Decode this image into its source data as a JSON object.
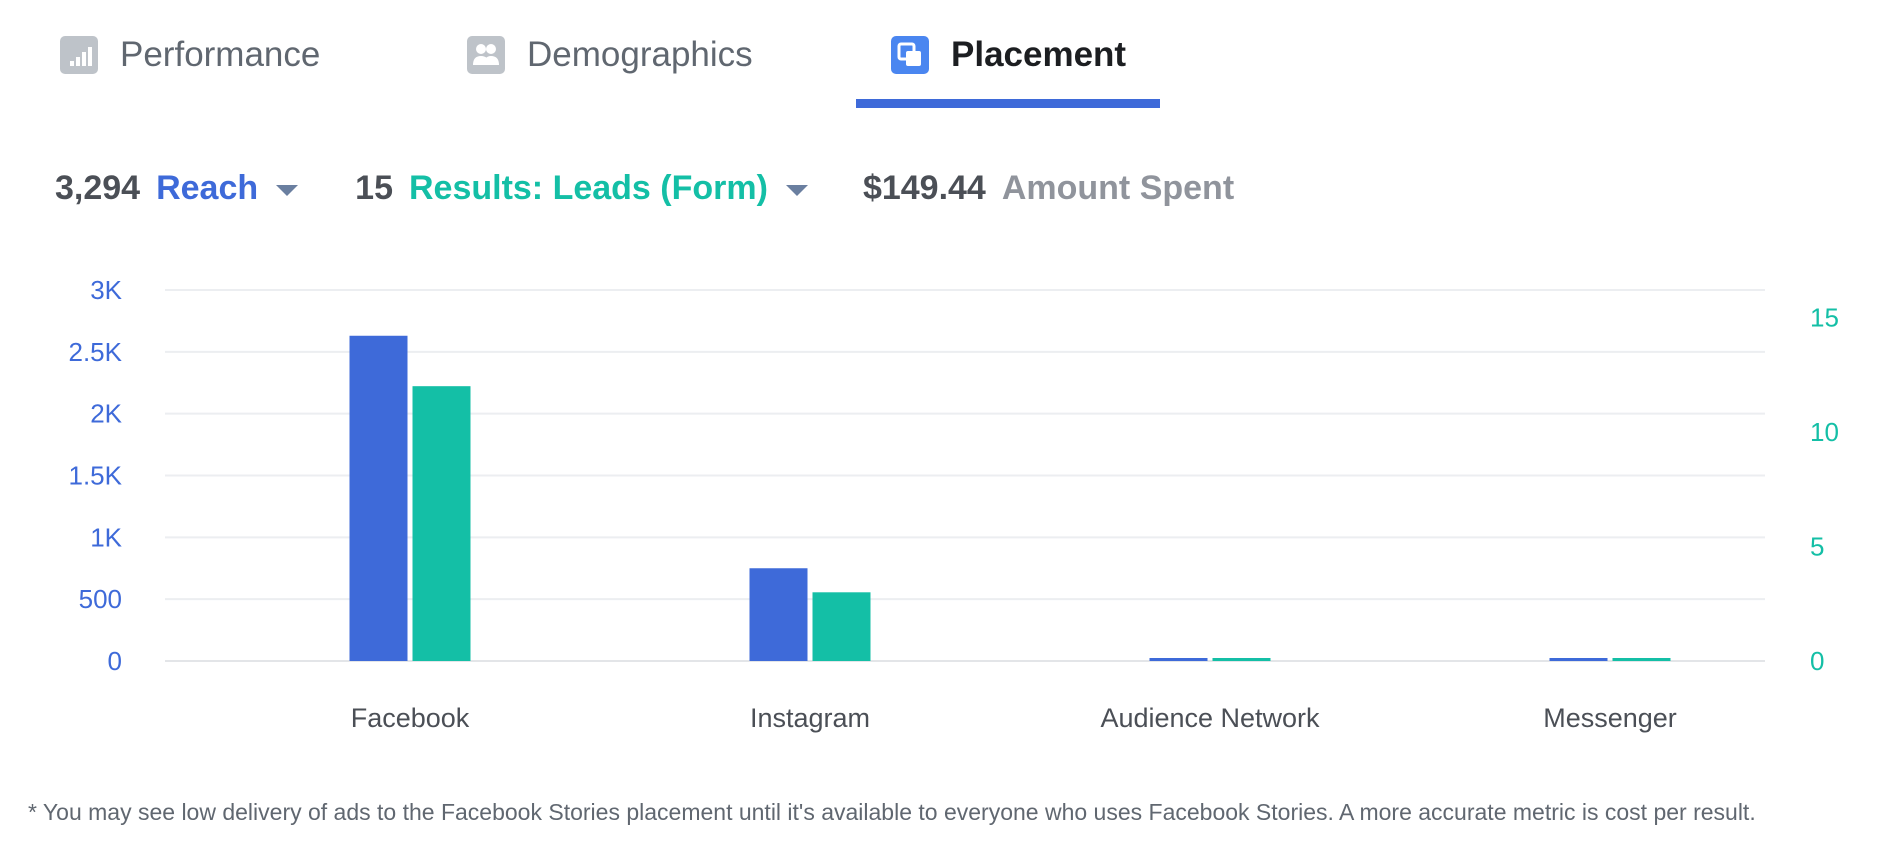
{
  "tabs": [
    {
      "label": "Performance",
      "icon": "bar-chart-icon",
      "active": false
    },
    {
      "label": "Demographics",
      "icon": "people-icon",
      "active": false
    },
    {
      "label": "Placement",
      "icon": "placement-icon",
      "active": true
    }
  ],
  "metrics": {
    "reach": {
      "value": "3,294",
      "label": "Reach"
    },
    "results": {
      "value": "15",
      "label": "Results: Leads (Form)"
    },
    "spent": {
      "value": "$149.44",
      "label": "Amount Spent"
    }
  },
  "colors": {
    "reach": "#3e6ad9",
    "results": "#14bfa6",
    "muted": "#90949c",
    "tab_icon_inactive": "#bec3c9",
    "tab_icon_active": "#4a86f0"
  },
  "chart_data": {
    "type": "bar",
    "categories": [
      "Facebook",
      "Instagram",
      "Audience Network",
      "Messenger"
    ],
    "series": [
      {
        "name": "Reach",
        "axis": "left",
        "values": [
          2630,
          750,
          20,
          20
        ]
      },
      {
        "name": "Results: Leads (Form)",
        "axis": "right",
        "values": [
          12,
          3,
          0.1,
          0.1
        ]
      }
    ],
    "y_left": {
      "ticks": [
        0,
        500,
        1000,
        1500,
        2000,
        2500,
        3000
      ],
      "tick_labels": [
        "0",
        "500",
        "1K",
        "1.5K",
        "2K",
        "2.5K",
        "3K"
      ],
      "ylim": [
        0,
        3000
      ]
    },
    "y_right": {
      "ticks": [
        0,
        5,
        10,
        15
      ],
      "tick_labels": [
        "0",
        "5",
        "10",
        "15"
      ],
      "ylim": [
        0,
        16.2
      ]
    },
    "grid": true,
    "legend": "none"
  },
  "footnote": "* You may see low delivery of ads to the Facebook Stories placement until it's available to everyone who uses Facebook Stories. A more accurate metric is cost per result."
}
